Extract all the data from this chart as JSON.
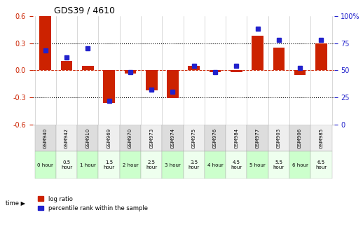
{
  "title": "GDS39 / 4610",
  "samples": [
    "GSM940",
    "GSM942",
    "GSM910",
    "GSM969",
    "GSM970",
    "GSM973",
    "GSM974",
    "GSM975",
    "GSM976",
    "GSM984",
    "GSM977",
    "GSM903",
    "GSM906",
    "GSM985"
  ],
  "time_labels": [
    "0 hour",
    "0.5\nhour",
    "1 hour",
    "1.5\nhour",
    "2 hour",
    "2.5\nhour",
    "3 hour",
    "3.5\nhour",
    "4 hour",
    "4.5\nhour",
    "5 hour",
    "5.5\nhour",
    "6 hour",
    "6.5\nhour"
  ],
  "log_ratio": [
    0.6,
    0.1,
    0.05,
    -0.36,
    -0.04,
    -0.22,
    -0.31,
    0.05,
    -0.02,
    -0.02,
    0.38,
    0.25,
    -0.05,
    0.3
  ],
  "percentile": [
    68,
    62,
    70,
    22,
    48,
    32,
    30,
    54,
    48,
    54,
    88,
    78,
    52,
    78
  ],
  "bar_color": "#cc2200",
  "dot_color": "#2222cc",
  "bg_color_odd": "#dddddd",
  "bg_color_even": "#eeeeee",
  "time_color_odd": "#ccffcc",
  "time_color_even": "#eeffee",
  "ylim_left": [
    -0.6,
    0.6
  ],
  "ylim_right": [
    0,
    100
  ],
  "yticks_left": [
    -0.6,
    -0.3,
    0.0,
    0.3,
    0.6
  ],
  "yticks_right": [
    0,
    25,
    50,
    75,
    100
  ],
  "ytick_labels_right": [
    "0",
    "25",
    "50",
    "75",
    "100%"
  ]
}
